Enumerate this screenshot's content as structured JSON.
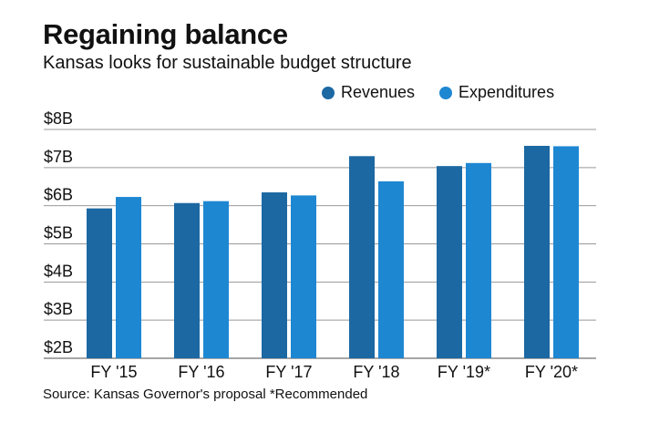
{
  "title": "Regaining balance",
  "subtitle": "Kansas looks for sustainable budget structure",
  "source": "Source: Kansas Governor's proposal *Recommended",
  "colors": {
    "Revenues": "#1c68a2",
    "Expenditures": "#1e87d2"
  },
  "chart_data": {
    "type": "bar",
    "title": "Regaining balance",
    "subtitle": "Kansas looks for sustainable budget structure",
    "categories": [
      "FY '15",
      "FY '16",
      "FY '17",
      "FY '18",
      "FY '19*",
      "FY '20*"
    ],
    "series": [
      {
        "name": "Revenues",
        "values": [
          5.93,
          6.07,
          6.35,
          7.3,
          7.04,
          7.57
        ]
      },
      {
        "name": "Expenditures",
        "values": [
          6.23,
          6.12,
          6.27,
          6.64,
          7.12,
          7.56
        ]
      }
    ],
    "ylim": [
      2,
      8
    ],
    "yticks": [
      "$2B",
      "$3B",
      "$4B",
      "$5B",
      "$6B",
      "$7B",
      "$8B"
    ],
    "grid": true,
    "legend": "top-right"
  }
}
